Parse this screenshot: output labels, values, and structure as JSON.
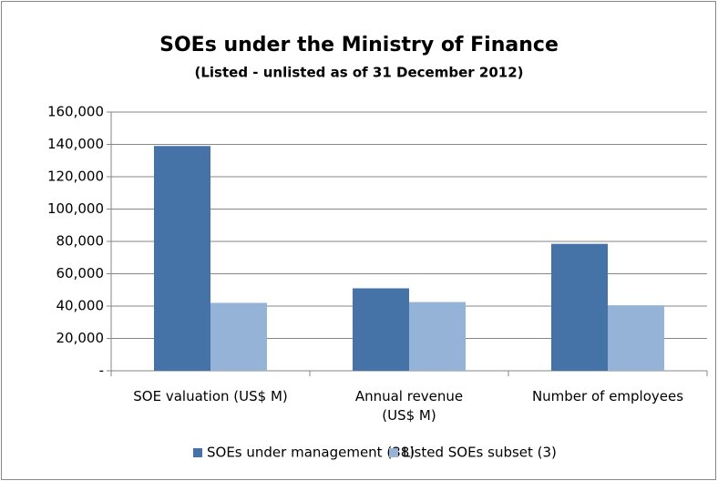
{
  "chart_data": {
    "type": "bar",
    "title": "SOEs under the Ministry of Finance",
    "subtitle": "(Listed - unlisted as of 31 December 2012)",
    "categories": [
      "SOE valuation (US$ M)",
      "Annual revenue\n(US$ M)",
      "Number of employees"
    ],
    "series": [
      {
        "name": "SOEs under management (38)",
        "color": "#4572a7",
        "values": [
          139000,
          51000,
          78500
        ]
      },
      {
        "name": "Listed SOEs subset (3)",
        "color": "#95b3d7",
        "values": [
          42000,
          42500,
          40500
        ]
      }
    ],
    "ylim": [
      0,
      160000
    ],
    "yticks": [
      {
        "value": 0,
        "label": "-"
      },
      {
        "value": 20000,
        "label": "20,000"
      },
      {
        "value": 40000,
        "label": "40,000"
      },
      {
        "value": 60000,
        "label": "60,000"
      },
      {
        "value": 80000,
        "label": "80,000"
      },
      {
        "value": 100000,
        "label": "100,000"
      },
      {
        "value": 120000,
        "label": "120,000"
      },
      {
        "value": 140000,
        "label": "140,000"
      },
      {
        "value": 160000,
        "label": "160,000"
      }
    ],
    "grid": true,
    "legend": "bottom"
  }
}
